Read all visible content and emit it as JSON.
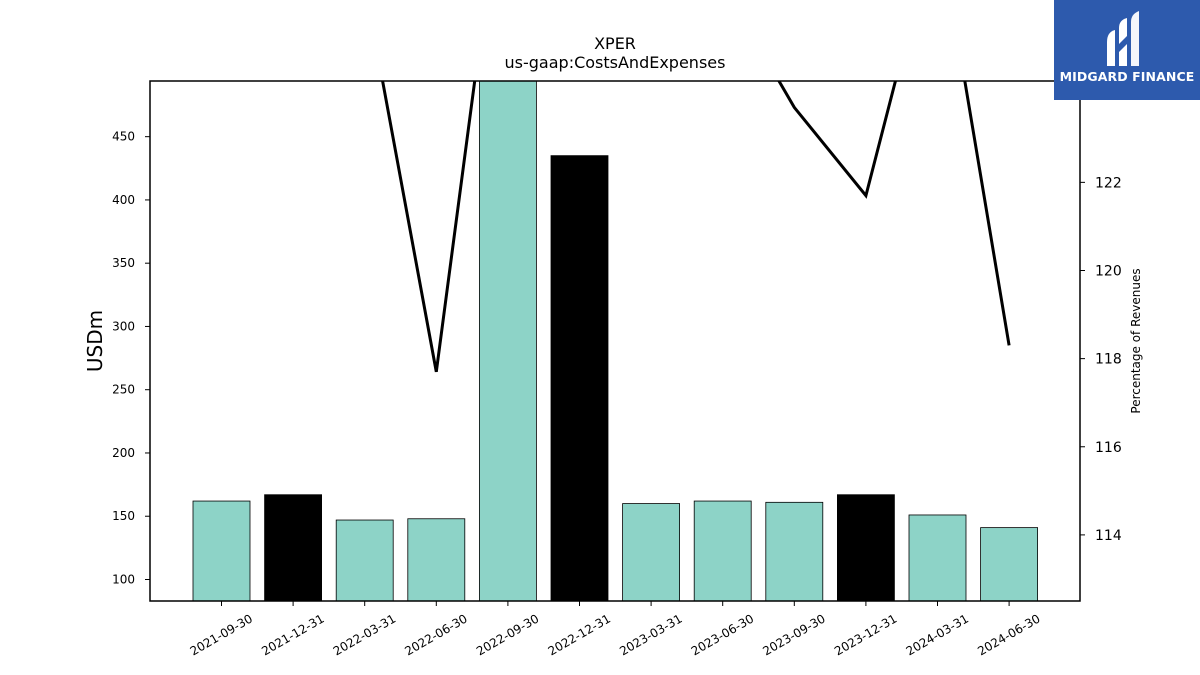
{
  "chart_data": {
    "type": "bar+line",
    "title": "XPER",
    "subtitle": "us-gaap:CostsAndExpenses",
    "ylabel": "USDm",
    "y2label": "Percentage of Revenues",
    "categories": [
      "2021-09-30",
      "2021-12-31",
      "2022-03-31",
      "2022-06-30",
      "2022-09-30",
      "2022-12-31",
      "2023-03-31",
      "2023-06-30",
      "2023-09-30",
      "2023-12-31",
      "2024-03-31",
      "2024-06-30"
    ],
    "bars": {
      "values": [
        162,
        167,
        147,
        148,
        500,
        435,
        160,
        162,
        161,
        167,
        151,
        141
      ],
      "colors": [
        "#8dd3c7",
        "#000000",
        "#8dd3c7",
        "#8dd3c7",
        "#8dd3c7",
        "#000000",
        "#8dd3c7",
        "#8dd3c7",
        "#8dd3c7",
        "#000000",
        "#8dd3c7",
        "#8dd3c7"
      ]
    },
    "line": {
      "values": [
        130,
        130,
        126.5,
        117.7,
        130,
        130,
        130,
        126.5,
        123.7,
        121.7,
        128,
        118.3
      ],
      "color": "#000000"
    },
    "ylim": [
      83,
      494
    ],
    "y2lim": [
      112.5,
      124.3
    ],
    "yticks": [
      100,
      150,
      200,
      250,
      300,
      350,
      400,
      450
    ],
    "y2ticks": [
      114,
      116,
      118,
      120,
      122
    ],
    "grid": false,
    "legend": "none"
  },
  "logo": {
    "text": "MIDGARD FINANCE",
    "color": "#2d5aad"
  }
}
